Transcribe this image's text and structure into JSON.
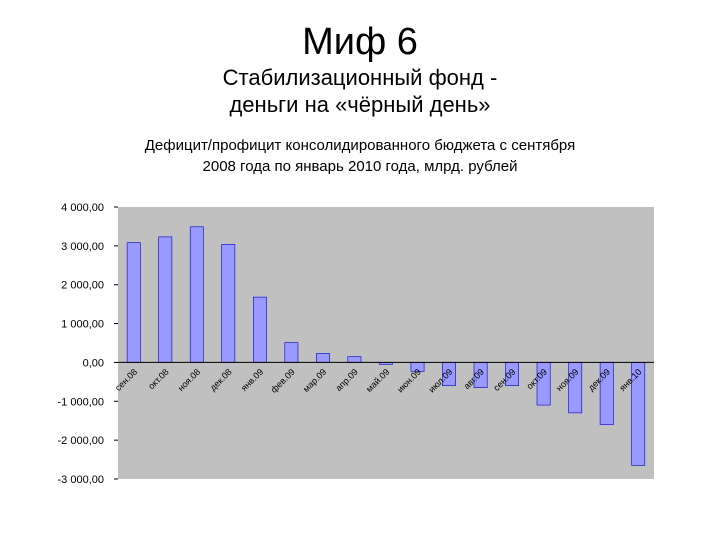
{
  "slide": {
    "title": "Миф 6",
    "subtitle_line1": "Стабилизационный фонд -",
    "subtitle_line2": "деньги на «чёрный день»"
  },
  "colors": {
    "plot_background": "#c0c0c0",
    "bar_fill": "#9999ff",
    "bar_edge": "#0000cc"
  },
  "chart_data": {
    "type": "bar",
    "title_line1": "Дефицит/профицит консолидированного бюджета с сентября",
    "title_line2": "2008 года по январь 2010 года, млрд. рублей",
    "xlabel": "",
    "ylabel": "",
    "ylim": [
      -3000,
      4000
    ],
    "y_ticks": [
      4000,
      3000,
      2000,
      1000,
      0,
      -1000,
      -2000,
      -3000
    ],
    "y_tick_labels": [
      "4 000,00",
      "3 000,00",
      "2 000,00",
      "1 000,00",
      "0,00",
      "-1 000,00",
      "-2 000,00",
      "-3 000,00"
    ],
    "grid": false,
    "legend": "none",
    "categories": [
      "сен.08",
      "окт.08",
      "ноя.08",
      "дек.08",
      "янв.09",
      "фев.09",
      "мар.09",
      "апр.09",
      "май.09",
      "июн.09",
      "июл.09",
      "авг.09",
      "сен.09",
      "окт.09",
      "ноя.09",
      "дек.09",
      "янв.10"
    ],
    "values": [
      3080,
      3230,
      3490,
      3040,
      1680,
      510,
      230,
      150,
      -50,
      -230,
      -600,
      -650,
      -600,
      -1100,
      -1300,
      -1600,
      -2650
    ]
  }
}
